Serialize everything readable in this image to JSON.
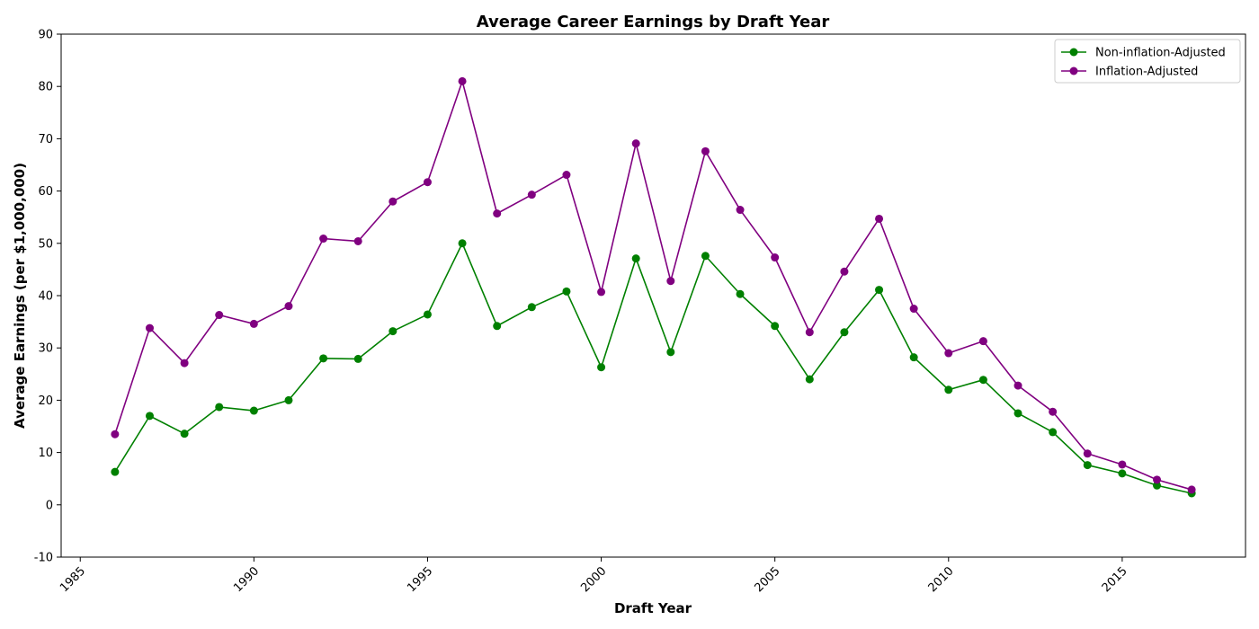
{
  "chart_data": {
    "type": "line",
    "title": "Average Career Earnings by Draft Year",
    "xlabel": "Draft Year",
    "ylabel": "Average Earnings (per $1,000,000)",
    "xlim": [
      1984.45,
      2018.55
    ],
    "ylim": [
      -10,
      90
    ],
    "xticks": [
      1985,
      1990,
      1995,
      2000,
      2005,
      2010,
      2015
    ],
    "yticks": [
      -10,
      0,
      10,
      20,
      30,
      40,
      50,
      60,
      70,
      80,
      90
    ],
    "grid": false,
    "legend_position": "top-right",
    "x": [
      1986,
      1987,
      1988,
      1989,
      1990,
      1991,
      1992,
      1993,
      1994,
      1995,
      1996,
      1997,
      1998,
      1999,
      2000,
      2001,
      2002,
      2003,
      2004,
      2005,
      2006,
      2007,
      2008,
      2009,
      2010,
      2011,
      2012,
      2013,
      2014,
      2015,
      2016,
      2017
    ],
    "series": [
      {
        "name": "Non-inflation-Adjusted",
        "color": "#008000",
        "values": [
          6.3,
          17.0,
          13.6,
          18.7,
          18.0,
          20.0,
          28.0,
          27.9,
          33.2,
          36.4,
          50.0,
          34.2,
          37.8,
          40.8,
          26.3,
          47.1,
          29.2,
          47.6,
          40.3,
          34.2,
          24.0,
          33.0,
          41.1,
          28.2,
          22.0,
          23.9,
          17.5,
          13.9,
          7.6,
          6.0,
          3.7,
          2.2
        ]
      },
      {
        "name": "Inflation-Adjusted",
        "color": "#800080",
        "values": [
          13.5,
          33.8,
          27.1,
          36.3,
          34.6,
          38.0,
          50.9,
          50.4,
          58.0,
          61.7,
          81.0,
          55.7,
          59.3,
          63.1,
          40.7,
          69.1,
          42.8,
          67.6,
          56.4,
          47.3,
          33.0,
          44.6,
          54.7,
          37.5,
          29.0,
          31.3,
          22.8,
          17.8,
          9.8,
          7.7,
          4.8,
          2.9
        ]
      }
    ]
  }
}
